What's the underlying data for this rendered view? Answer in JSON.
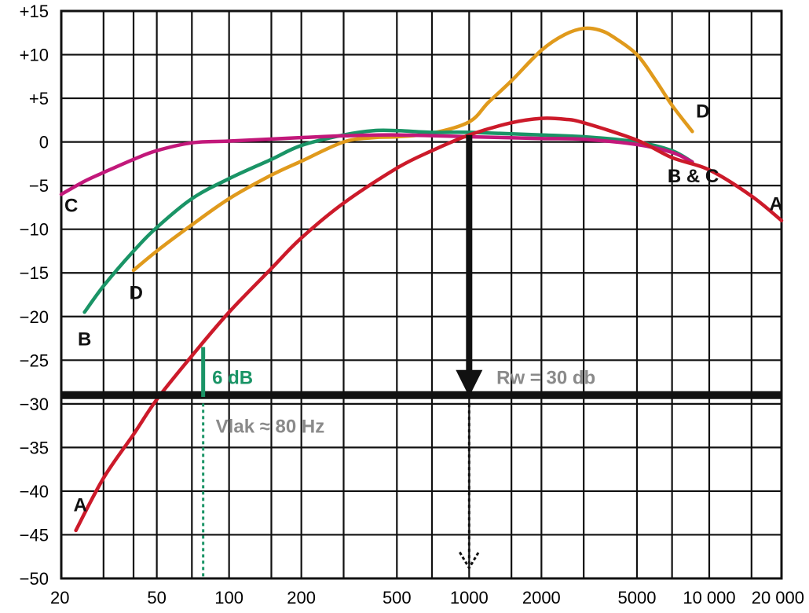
{
  "chart_data": {
    "type": "line",
    "x_scale": "log",
    "xlim": [
      20,
      20000
    ],
    "ylim": [
      -50,
      15
    ],
    "grid": true,
    "x_ticks": [
      {
        "value": 20,
        "label": "20"
      },
      {
        "value": 50,
        "label": "50"
      },
      {
        "value": 100,
        "label": "100"
      },
      {
        "value": 200,
        "label": "200"
      },
      {
        "value": 500,
        "label": "500"
      },
      {
        "value": 1000,
        "label": "1000"
      },
      {
        "value": 2000,
        "label": "2000"
      },
      {
        "value": 5000,
        "label": "5000"
      },
      {
        "value": 10000,
        "label": "10 000"
      },
      {
        "value": 20000,
        "label": "20 000"
      }
    ],
    "y_ticks": [
      {
        "value": 15,
        "label": "+15"
      },
      {
        "value": 10,
        "label": "+10"
      },
      {
        "value": 5,
        "label": "+5"
      },
      {
        "value": 0,
        "label": "0"
      },
      {
        "value": -5,
        "label": "−5"
      },
      {
        "value": -10,
        "label": "−10"
      },
      {
        "value": -15,
        "label": "−15"
      },
      {
        "value": -20,
        "label": "−20"
      },
      {
        "value": -25,
        "label": "−25"
      },
      {
        "value": -30,
        "label": "−30"
      },
      {
        "value": -35,
        "label": "−35"
      },
      {
        "value": -40,
        "label": "−40"
      },
      {
        "value": -45,
        "label": "−45"
      },
      {
        "value": -50,
        "label": "−50"
      }
    ],
    "series": [
      {
        "key": "A",
        "color": "#cc1a2a",
        "points": [
          [
            23,
            -44.5
          ],
          [
            30,
            -38.5
          ],
          [
            40,
            -33.5
          ],
          [
            50,
            -29.5
          ],
          [
            70,
            -24.5
          ],
          [
            100,
            -19.5
          ],
          [
            150,
            -14.5
          ],
          [
            200,
            -11
          ],
          [
            300,
            -7
          ],
          [
            500,
            -3
          ],
          [
            700,
            -1
          ],
          [
            1000,
            0.8
          ],
          [
            1500,
            2.2
          ],
          [
            2000,
            2.7
          ],
          [
            2500,
            2.6
          ],
          [
            3000,
            2.2
          ],
          [
            5000,
            0.2
          ],
          [
            7000,
            -1.8
          ],
          [
            10000,
            -3.2
          ],
          [
            15000,
            -6.2
          ],
          [
            20000,
            -9
          ]
        ],
        "labels": [
          {
            "text": "A",
            "near_x": 24,
            "near_y": -41.5
          },
          {
            "text": "A",
            "near_x": 19000,
            "near_y": -7
          }
        ]
      },
      {
        "key": "B",
        "color": "#1a9466",
        "points": [
          [
            25,
            -19.5
          ],
          [
            30,
            -16.5
          ],
          [
            40,
            -12.5
          ],
          [
            50,
            -9.8
          ],
          [
            70,
            -6.5
          ],
          [
            100,
            -4.2
          ],
          [
            150,
            -2
          ],
          [
            200,
            -0.4
          ],
          [
            300,
            0.8
          ],
          [
            400,
            1.3
          ],
          [
            500,
            1.3
          ],
          [
            700,
            1.1
          ],
          [
            1000,
            1.1
          ],
          [
            2000,
            0.8
          ],
          [
            3000,
            0.6
          ],
          [
            5000,
            0
          ],
          [
            7000,
            -1
          ],
          [
            8500,
            -2.3
          ]
        ],
        "labels": [
          {
            "text": "B",
            "near_x": 25,
            "near_y": -22.5
          },
          {
            "text": "B & C",
            "near_x": 6700,
            "near_y": -3.8
          }
        ]
      },
      {
        "key": "C",
        "color": "#c2187a",
        "points": [
          [
            20,
            -6
          ],
          [
            25,
            -4.5
          ],
          [
            30,
            -3.5
          ],
          [
            40,
            -2
          ],
          [
            50,
            -1
          ],
          [
            70,
            -0.1
          ],
          [
            100,
            0.1
          ],
          [
            200,
            0.5
          ],
          [
            300,
            0.7
          ],
          [
            500,
            0.8
          ],
          [
            1000,
            0.6
          ],
          [
            2000,
            0.4
          ],
          [
            3000,
            0.3
          ],
          [
            5000,
            -0.3
          ],
          [
            7000,
            -1.2
          ],
          [
            8500,
            -2.3
          ]
        ],
        "labels": [
          {
            "text": "C",
            "near_x": 22,
            "near_y": -7.2
          }
        ]
      },
      {
        "key": "D",
        "color": "#e09a1c",
        "points": [
          [
            40,
            -14.7
          ],
          [
            50,
            -12.5
          ],
          [
            70,
            -9.5
          ],
          [
            100,
            -6.5
          ],
          [
            150,
            -3.8
          ],
          [
            200,
            -2.2
          ],
          [
            300,
            0
          ],
          [
            400,
            0.5
          ],
          [
            500,
            0.6
          ],
          [
            700,
            1
          ],
          [
            1000,
            2.3
          ],
          [
            1200,
            4.5
          ],
          [
            1500,
            7
          ],
          [
            2000,
            10.5
          ],
          [
            2500,
            12.3
          ],
          [
            3000,
            13
          ],
          [
            3500,
            12.8
          ],
          [
            4000,
            12
          ],
          [
            5000,
            10
          ],
          [
            6000,
            7
          ],
          [
            7000,
            4.2
          ],
          [
            8500,
            1.2
          ]
        ],
        "labels": [
          {
            "text": "D",
            "near_x": 41,
            "near_y": -17.2
          },
          {
            "text": "D",
            "near_x": 9400,
            "near_y": 3.6
          }
        ]
      }
    ],
    "annotations": {
      "reference_line": {
        "y": -29,
        "color": "#111111"
      },
      "rw_arrow": {
        "x": 1000,
        "y_from": 0.8,
        "y_to": -29
      },
      "rw_dotted_arrow": {
        "x": 1000,
        "y_from": -29.5,
        "y_to": -48.8
      },
      "rw_label": {
        "text": "Rw = 30 db",
        "color": "#8a8a8a",
        "near_x": 1300,
        "near_y": -27
      },
      "db6_segment": {
        "x": 78,
        "y_from": -23.5,
        "y_to": -29.2
      },
      "db6_label": {
        "text": "6 dB",
        "color": "#1a9466",
        "near_x": 85,
        "near_y": -27
      },
      "vlak_dotted": {
        "x": 78,
        "y_from": -29.6,
        "y_to": -50
      },
      "vlak_label": {
        "text": "Vlak ≈ 80 Hz",
        "color": "#8a8a8a",
        "near_x": 88,
        "near_y": -32.6
      }
    }
  }
}
